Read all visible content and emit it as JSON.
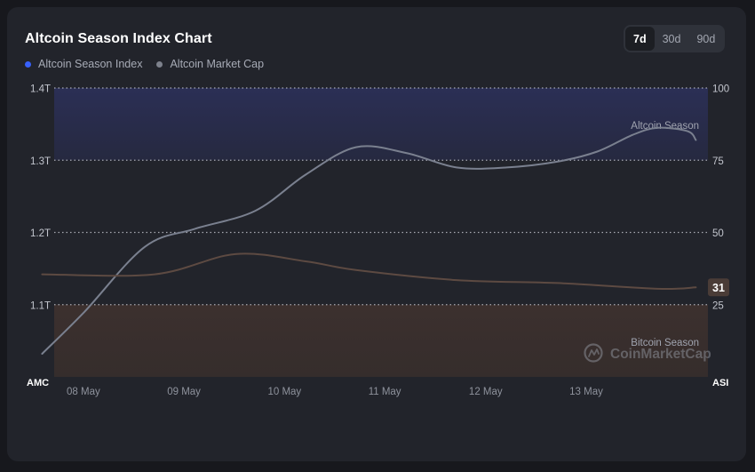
{
  "header": {
    "title": "Altcoin Season Index Chart",
    "tabs": [
      {
        "label": "7d",
        "active": true
      },
      {
        "label": "30d",
        "active": false
      },
      {
        "label": "90d",
        "active": false
      }
    ]
  },
  "legend": [
    {
      "label": "Altcoin Season Index",
      "color": "#3861fb"
    },
    {
      "label": "Altcoin Market Cap",
      "color": "#7d818c"
    }
  ],
  "watermark": "CoinMarketCap",
  "chart_data": {
    "type": "line",
    "title": "Altcoin Season Index Chart",
    "x_labels": [
      "08 May",
      "09 May",
      "10 May",
      "11 May",
      "12 May",
      "13 May"
    ],
    "x_range": [
      0,
      6.5
    ],
    "y_left": {
      "label": "AMC",
      "ticks": [
        "1.4T",
        "1.3T",
        "1.2T",
        "1.1T"
      ],
      "range": [
        1.0,
        1.4
      ],
      "unit": "T"
    },
    "y_right": {
      "label": "ASI",
      "ticks": [
        "100",
        "75",
        "50",
        "25"
      ],
      "range": [
        0,
        100
      ]
    },
    "zones": [
      {
        "label": "Altcoin Season",
        "from": 75,
        "to": 100,
        "color": "#2b2f52"
      },
      {
        "label": "Bitcoin Season",
        "from": 0,
        "to": 25,
        "color": "#3a302e"
      }
    ],
    "grid": "dotted-horizontal",
    "series": [
      {
        "name": "Altcoin Market Cap",
        "axis": "left",
        "color": "#7a808f",
        "points": [
          [
            -0.12,
            1.032
          ],
          [
            0.3,
            1.09
          ],
          [
            0.9,
            1.18
          ],
          [
            1.4,
            1.205
          ],
          [
            2.0,
            1.23
          ],
          [
            2.5,
            1.28
          ],
          [
            3.0,
            1.318
          ],
          [
            3.5,
            1.31
          ],
          [
            4.0,
            1.29
          ],
          [
            4.5,
            1.29
          ],
          [
            5.0,
            1.298
          ],
          [
            5.4,
            1.312
          ],
          [
            5.75,
            1.335
          ],
          [
            6.0,
            1.345
          ],
          [
            6.3,
            1.34
          ],
          [
            6.38,
            1.328
          ]
        ]
      },
      {
        "name": "Altcoin Season Index",
        "axis": "right",
        "color": "#5d4a42",
        "points": [
          [
            -0.12,
            35.5
          ],
          [
            1.0,
            35.5
          ],
          [
            1.8,
            42.5
          ],
          [
            2.5,
            40
          ],
          [
            3.0,
            37
          ],
          [
            4.0,
            33.5
          ],
          [
            5.0,
            32.5
          ],
          [
            6.0,
            30.5
          ],
          [
            6.38,
            31
          ]
        ],
        "last_value": "31"
      }
    ]
  }
}
